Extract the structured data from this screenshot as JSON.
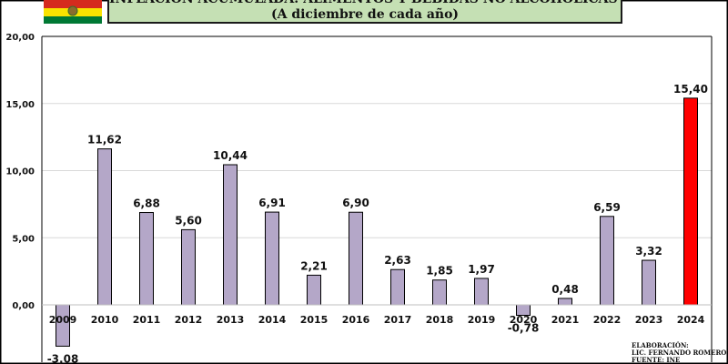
{
  "title": {
    "line1": "INFLACIÓN ACUMULADA: ALIMENTOS Y BEBIDAS NO ALCOHÓLICAS (%)",
    "line2": "(A diciembre de cada año)"
  },
  "credits": {
    "line1": "ELABORACIÓN:",
    "line2": "LIC. FERNANDO ROMERO",
    "line3": "FUENTE: INE"
  },
  "colors": {
    "bar": "#b4a7c8",
    "highlight": "#ff0000",
    "grid": "#d9d9d9",
    "title_bg": "#c5e0b4",
    "flag_red": "#d52b1e",
    "flag_yellow": "#f9e300",
    "flag_green": "#007934"
  },
  "icons": {
    "flag": "bolivia-flag-icon"
  },
  "chart_data": {
    "type": "bar",
    "title": "INFLACIÓN ACUMULADA: ALIMENTOS Y BEBIDAS NO ALCOHÓLICAS (%)",
    "subtitle": "(A diciembre de cada año)",
    "xlabel": "",
    "ylabel": "",
    "ylim": [
      -3.08,
      20
    ],
    "yticks": [
      "0,00",
      "5,00",
      "10,00",
      "15,00",
      "20,00"
    ],
    "ytick_values": [
      0,
      5,
      10,
      15,
      20
    ],
    "grid": true,
    "legend": "none",
    "highlight_category": "2024",
    "categories": [
      "2009",
      "2010",
      "2011",
      "2012",
      "2013",
      "2014",
      "2015",
      "2016",
      "2017",
      "2018",
      "2019",
      "2020",
      "2021",
      "2022",
      "2023",
      "2024"
    ],
    "values": [
      -3.08,
      11.62,
      6.88,
      5.6,
      10.44,
      6.91,
      2.21,
      6.9,
      2.63,
      1.85,
      1.97,
      -0.78,
      0.48,
      6.59,
      3.32,
      15.4
    ],
    "labels": [
      "-3,08",
      "11,62",
      "6,88",
      "5,60",
      "10,44",
      "6,91",
      "2,21",
      "6,90",
      "2,63",
      "1,85",
      "1,97",
      "-0,78",
      "0,48",
      "6,59",
      "3,32",
      "15,40"
    ]
  }
}
